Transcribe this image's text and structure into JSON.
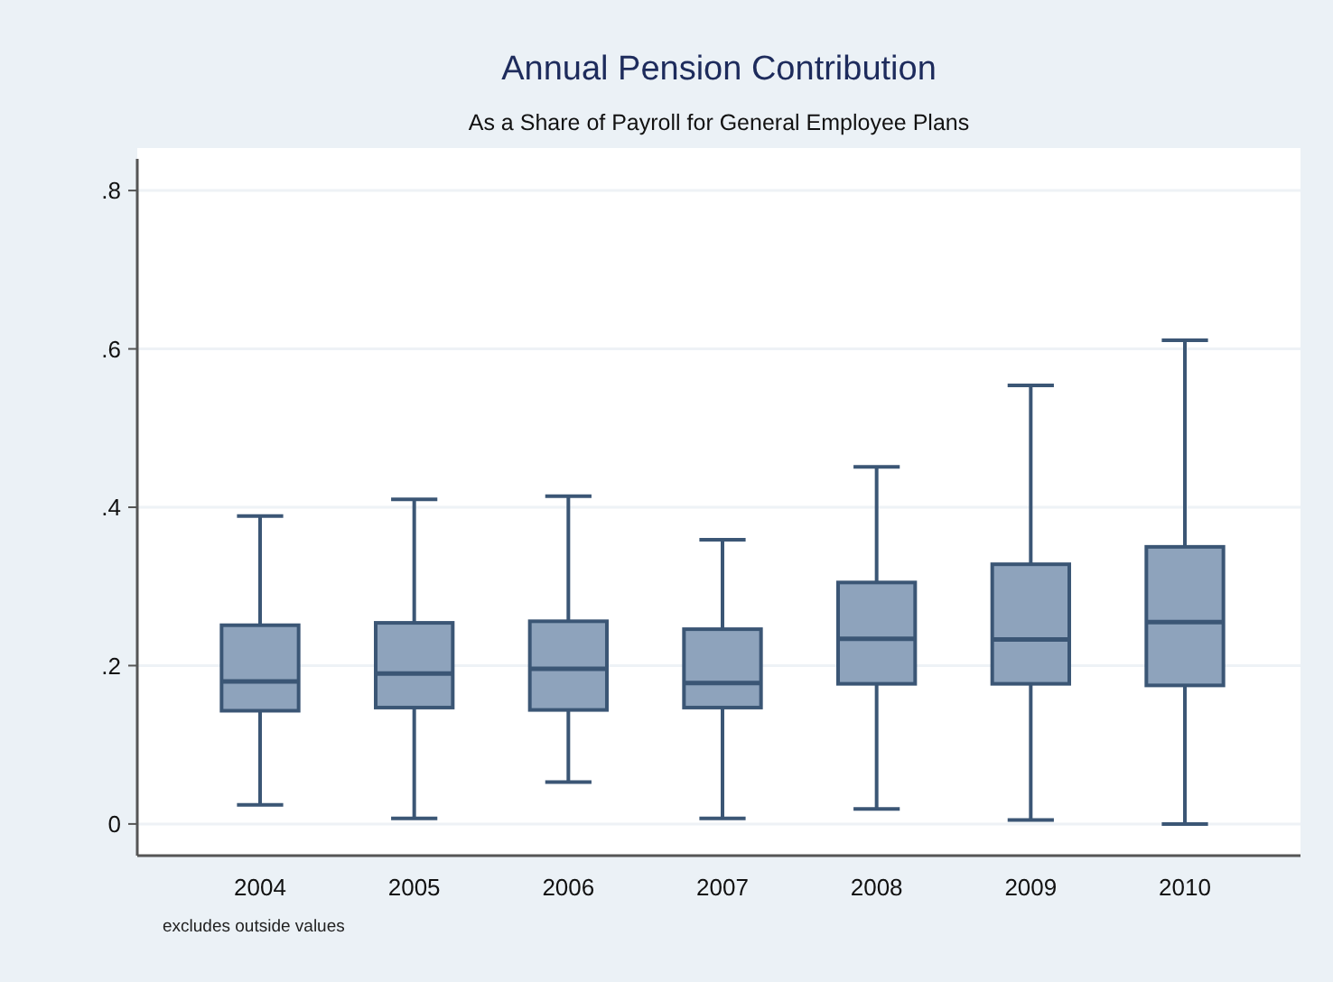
{
  "chart_data": {
    "type": "box",
    "title": "Annual Pension Contribution",
    "subtitle": "As a Share of Payroll for General Employee Plans",
    "categories": [
      "2004",
      "2005",
      "2006",
      "2007",
      "2008",
      "2009",
      "2010"
    ],
    "boxes": [
      {
        "low": 0.024,
        "q1": 0.143,
        "median": 0.18,
        "q3": 0.251,
        "high": 0.389
      },
      {
        "low": 0.007,
        "q1": 0.147,
        "median": 0.19,
        "q3": 0.254,
        "high": 0.41
      },
      {
        "low": 0.053,
        "q1": 0.144,
        "median": 0.196,
        "q3": 0.256,
        "high": 0.414
      },
      {
        "low": 0.007,
        "q1": 0.147,
        "median": 0.178,
        "q3": 0.246,
        "high": 0.359
      },
      {
        "low": 0.019,
        "q1": 0.177,
        "median": 0.234,
        "q3": 0.305,
        "high": 0.451
      },
      {
        "low": 0.005,
        "q1": 0.177,
        "median": 0.233,
        "q3": 0.328,
        "high": 0.554
      },
      {
        "low": 0,
        "q1": 0.175,
        "median": 0.255,
        "q3": 0.35,
        "high": 0.611
      }
    ],
    "color": "#8ea3bc",
    "ylim": [
      -0.04,
      0.84
    ],
    "yticks": [
      {
        "value": 0,
        "label": "0"
      },
      {
        "value": 0.2,
        "label": ".2"
      },
      {
        "value": 0.4,
        "label": ".4"
      },
      {
        "value": 0.6,
        "label": ".6"
      },
      {
        "value": 0.8,
        "label": ".8"
      }
    ],
    "grid": "y",
    "annotations": [
      "excludes outside values"
    ]
  }
}
